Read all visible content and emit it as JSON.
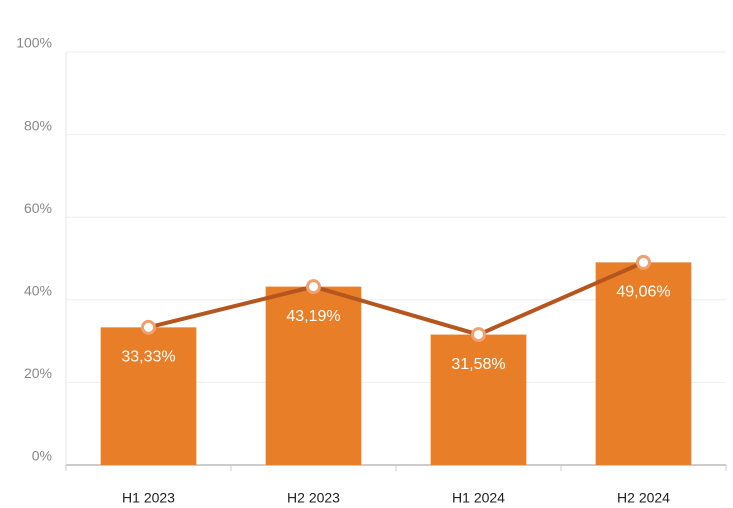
{
  "chart_data": {
    "type": "bar",
    "categories": [
      "H1 2023",
      "H2 2023",
      "H1 2024",
      "H2 2024"
    ],
    "values": [
      33.33,
      43.19,
      31.58,
      49.06
    ],
    "value_labels": [
      "33,33%",
      "43,19%",
      "31,58%",
      "49,06%"
    ],
    "color": "#e87e27",
    "line_overlay": true,
    "line_color": "#b5561f",
    "ylim": [
      0,
      100
    ],
    "yticks": [
      {
        "value": 0,
        "label": "0%"
      },
      {
        "value": 20,
        "label": "20%"
      },
      {
        "value": 40,
        "label": "40%"
      },
      {
        "value": 60,
        "label": "60%"
      },
      {
        "value": 80,
        "label": "80%"
      },
      {
        "value": 100,
        "label": "100%"
      }
    ],
    "grid": true
  }
}
